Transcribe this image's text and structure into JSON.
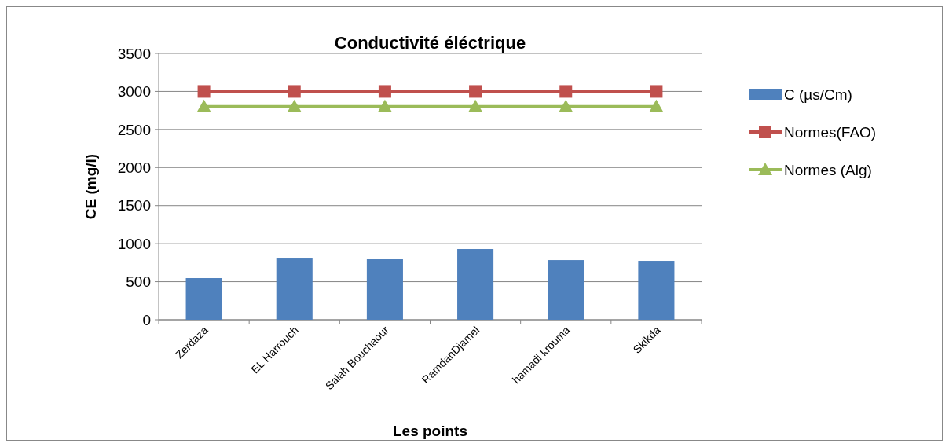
{
  "chart_data": {
    "type": "bar",
    "title": "Conductivité éléctrique",
    "xlabel": "Les points",
    "ylabel": "CE (mg/l)",
    "categories": [
      "Zerdaza",
      "EL Harrouch",
      "Salah Bouchaour",
      "RamdanDjamel",
      "hamadi krouma",
      "Skikda"
    ],
    "series": [
      {
        "name": "C (µs/Cm)",
        "color": "#4f81bd",
        "values": [
          547,
          805,
          795,
          929,
          784,
          774
        ]
      },
      {
        "name": "Normes(FAO)",
        "type": "line",
        "color": "#c0504d",
        "marker": "square",
        "values": [
          3000,
          3000,
          3000,
          3000,
          3000,
          3000
        ]
      },
      {
        "name": "Normes (Alg)",
        "type": "line",
        "color": "#9bbb59",
        "marker": "triangle",
        "values": [
          2800,
          2800,
          2800,
          2800,
          2800,
          2800
        ]
      }
    ],
    "ylim": [
      0,
      3500
    ],
    "yticks": [
      0,
      500,
      1000,
      1500,
      2000,
      2500,
      3000,
      3500
    ],
    "grid": "y",
    "legend": "right"
  }
}
